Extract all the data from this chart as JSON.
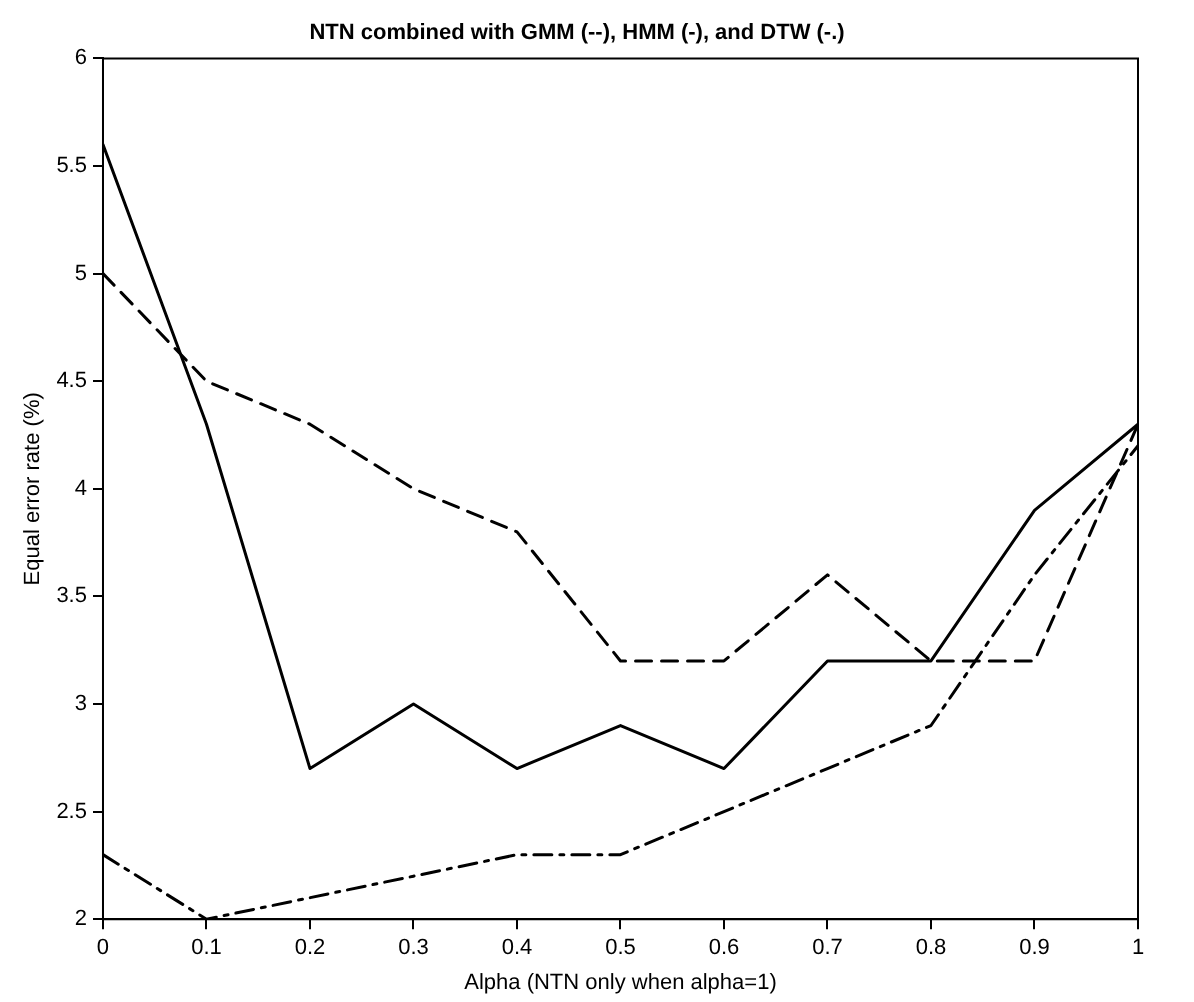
{
  "chart_data": {
    "type": "line",
    "title": "NTN combined with GMM (--), HMM (-), and DTW (-.)",
    "xlabel": "Alpha (NTN only when alpha=1)",
    "ylabel": "Equal error rate (%)",
    "x": [
      0,
      0.1,
      0.2,
      0.3,
      0.4,
      0.5,
      0.6,
      0.7,
      0.8,
      0.9,
      1
    ],
    "series": [
      {
        "color": "#000000",
        "line_style": "dashed",
        "values": [
          5.0,
          4.5,
          4.3,
          4.0,
          3.8,
          3.2,
          3.2,
          3.6,
          3.2,
          3.2,
          4.3
        ]
      },
      {
        "color": "#000000",
        "line_style": "solid",
        "values": [
          5.6,
          4.3,
          2.7,
          3.0,
          2.7,
          2.9,
          2.7,
          3.2,
          3.2,
          3.9,
          4.3
        ]
      },
      {
        "color": "#000000",
        "line_style": "dashdot",
        "values": [
          2.3,
          2.0,
          2.1,
          2.2,
          2.3,
          2.3,
          2.5,
          2.7,
          2.9,
          3.6,
          4.2
        ]
      }
    ],
    "xlim": [
      0,
      1
    ],
    "xticks": [
      0,
      0.1,
      0.2,
      0.3,
      0.4,
      0.5,
      0.6,
      0.7,
      0.8,
      0.9,
      1
    ],
    "ylim": [
      2,
      6
    ],
    "yticks": [
      2,
      2.5,
      3,
      3.5,
      4,
      4.5,
      5,
      5.5,
      6
    ],
    "grid": false,
    "legend": false,
    "marker": "none"
  }
}
